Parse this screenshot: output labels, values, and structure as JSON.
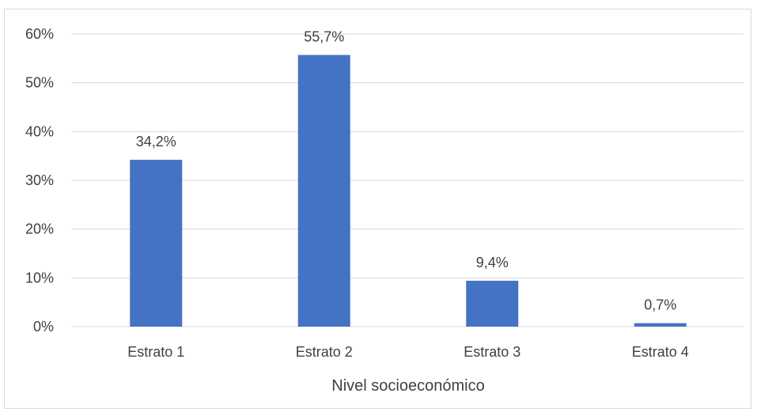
{
  "chart_data": {
    "type": "bar",
    "categories": [
      "Estrato 1",
      "Estrato 2",
      "Estrato 3",
      "Estrato 4"
    ],
    "values": [
      34.2,
      55.7,
      9.4,
      0.7
    ],
    "data_labels": [
      "34,2%",
      "55,7%",
      "9,4%",
      "0,7%"
    ],
    "yticks": [
      "0%",
      "10%",
      "20%",
      "30%",
      "40%",
      "50%",
      "60%"
    ],
    "ylim": [
      0,
      60
    ],
    "xlabel": "Nivel socioeconómico",
    "ylabel": "",
    "title": "",
    "grid": true,
    "bar_color": "#4472c4",
    "grid_color": "#d9d9d9",
    "text_color": "#404040"
  }
}
